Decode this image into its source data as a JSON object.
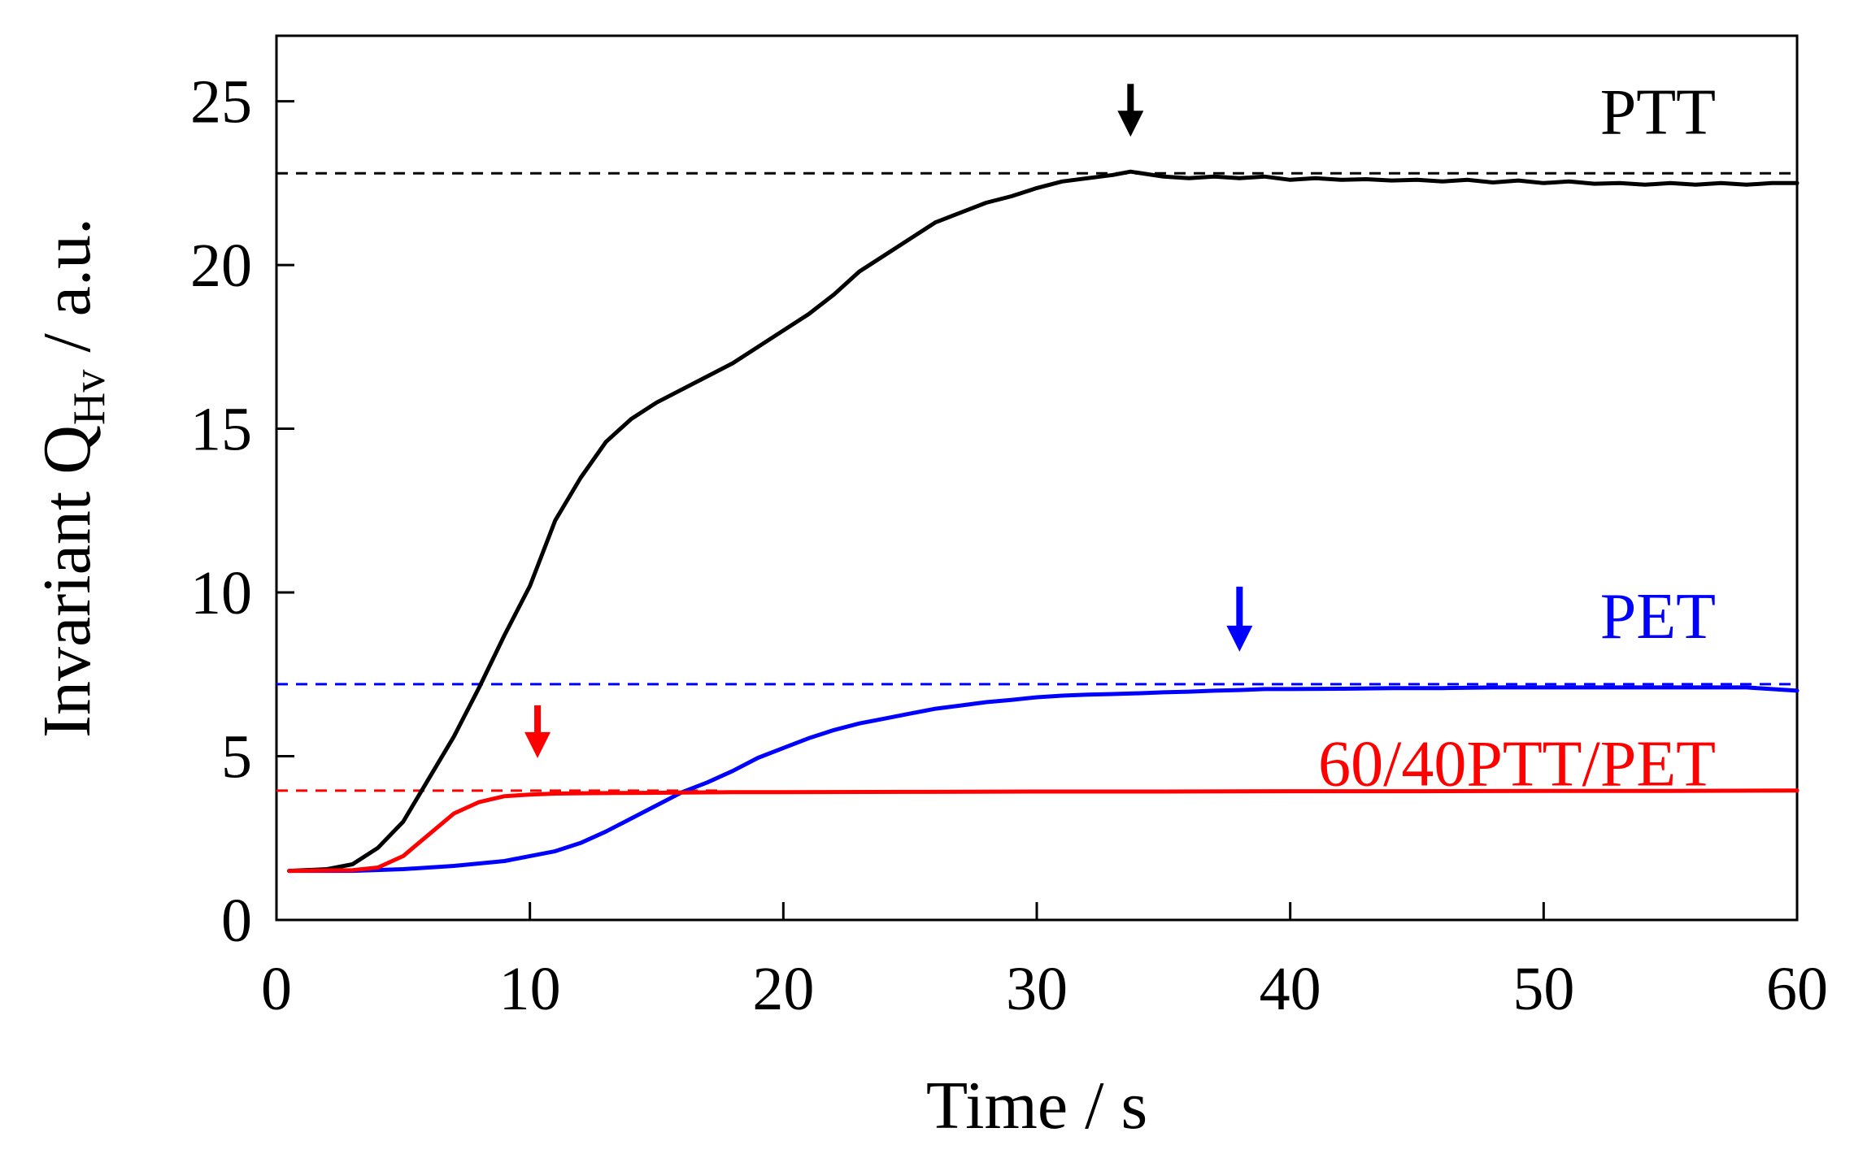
{
  "chart_data": {
    "type": "line",
    "title": "",
    "xlabel": "Time / s",
    "ylabel": {
      "prefix": "Invariant Q",
      "subscript": "Hv",
      "suffix": " / a.u."
    },
    "xlim": [
      0,
      60
    ],
    "ylim": [
      0,
      27
    ],
    "x_ticks": [
      0,
      10,
      20,
      30,
      40,
      50,
      60
    ],
    "y_ticks": [
      0,
      5,
      10,
      15,
      20,
      25
    ],
    "grid": false,
    "series": [
      {
        "name": "PTT",
        "color": "#000000",
        "plateau": 22.8,
        "arrow_x": 33.7,
        "points": [
          [
            0.5,
            1.5
          ],
          [
            2,
            1.55
          ],
          [
            3,
            1.7
          ],
          [
            4,
            2.2
          ],
          [
            5,
            3.0
          ],
          [
            6,
            4.3
          ],
          [
            7,
            5.6
          ],
          [
            8,
            7.1
          ],
          [
            9,
            8.7
          ],
          [
            10,
            10.2
          ],
          [
            11,
            12.2
          ],
          [
            12,
            13.5
          ],
          [
            13,
            14.6
          ],
          [
            14,
            15.3
          ],
          [
            15,
            15.8
          ],
          [
            16,
            16.2
          ],
          [
            17,
            16.6
          ],
          [
            18,
            17.0
          ],
          [
            19,
            17.5
          ],
          [
            20,
            18.0
          ],
          [
            21,
            18.5
          ],
          [
            22,
            19.1
          ],
          [
            23,
            19.8
          ],
          [
            24,
            20.3
          ],
          [
            25,
            20.8
          ],
          [
            26,
            21.3
          ],
          [
            27,
            21.6
          ],
          [
            28,
            21.9
          ],
          [
            29,
            22.1
          ],
          [
            30,
            22.35
          ],
          [
            31,
            22.55
          ],
          [
            32,
            22.65
          ],
          [
            33,
            22.75
          ],
          [
            33.7,
            22.85
          ],
          [
            35,
            22.7
          ],
          [
            36,
            22.65
          ],
          [
            37,
            22.7
          ],
          [
            38,
            22.65
          ],
          [
            39,
            22.7
          ],
          [
            40,
            22.6
          ],
          [
            41,
            22.65
          ],
          [
            42,
            22.6
          ],
          [
            43,
            22.62
          ],
          [
            44,
            22.58
          ],
          [
            45,
            22.6
          ],
          [
            46,
            22.55
          ],
          [
            47,
            22.6
          ],
          [
            48,
            22.52
          ],
          [
            49,
            22.58
          ],
          [
            50,
            22.5
          ],
          [
            51,
            22.55
          ],
          [
            52,
            22.48
          ],
          [
            53,
            22.5
          ],
          [
            54,
            22.45
          ],
          [
            55,
            22.5
          ],
          [
            56,
            22.45
          ],
          [
            57,
            22.5
          ],
          [
            58,
            22.45
          ],
          [
            59,
            22.5
          ],
          [
            60,
            22.5
          ]
        ]
      },
      {
        "name": "PET",
        "color": "#0000ff",
        "plateau": 7.2,
        "arrow_x": 38.0,
        "points": [
          [
            0.5,
            1.5
          ],
          [
            3,
            1.5
          ],
          [
            5,
            1.55
          ],
          [
            7,
            1.65
          ],
          [
            9,
            1.8
          ],
          [
            10,
            1.95
          ],
          [
            11,
            2.1
          ],
          [
            12,
            2.35
          ],
          [
            13,
            2.7
          ],
          [
            14,
            3.1
          ],
          [
            15,
            3.5
          ],
          [
            16,
            3.9
          ],
          [
            17,
            4.2
          ],
          [
            18,
            4.55
          ],
          [
            19,
            4.95
          ],
          [
            20,
            5.25
          ],
          [
            21,
            5.55
          ],
          [
            22,
            5.8
          ],
          [
            23,
            6.0
          ],
          [
            24,
            6.15
          ],
          [
            25,
            6.3
          ],
          [
            26,
            6.45
          ],
          [
            27,
            6.55
          ],
          [
            28,
            6.65
          ],
          [
            29,
            6.72
          ],
          [
            30,
            6.8
          ],
          [
            31,
            6.85
          ],
          [
            32,
            6.88
          ],
          [
            33,
            6.9
          ],
          [
            34,
            6.92
          ],
          [
            35,
            6.95
          ],
          [
            36,
            6.97
          ],
          [
            37,
            7.0
          ],
          [
            38,
            7.02
          ],
          [
            39,
            7.05
          ],
          [
            40,
            7.05
          ],
          [
            42,
            7.06
          ],
          [
            44,
            7.08
          ],
          [
            46,
            7.08
          ],
          [
            48,
            7.1
          ],
          [
            50,
            7.1
          ],
          [
            52,
            7.1
          ],
          [
            54,
            7.1
          ],
          [
            56,
            7.1
          ],
          [
            58,
            7.1
          ],
          [
            60,
            7.0
          ]
        ]
      },
      {
        "name": "60/40PTT/PET",
        "color": "#ff0000",
        "plateau": 3.95,
        "arrow_x": 10.3,
        "points": [
          [
            0.5,
            1.5
          ],
          [
            3,
            1.52
          ],
          [
            4,
            1.6
          ],
          [
            5,
            1.95
          ],
          [
            6,
            2.6
          ],
          [
            7,
            3.25
          ],
          [
            8,
            3.6
          ],
          [
            9,
            3.78
          ],
          [
            10,
            3.83
          ],
          [
            11,
            3.86
          ],
          [
            12,
            3.87
          ],
          [
            14,
            3.88
          ],
          [
            16,
            3.89
          ],
          [
            18,
            3.9
          ],
          [
            20,
            3.9
          ],
          [
            25,
            3.91
          ],
          [
            30,
            3.92
          ],
          [
            35,
            3.92
          ],
          [
            40,
            3.93
          ],
          [
            45,
            3.93
          ],
          [
            50,
            3.94
          ],
          [
            55,
            3.94
          ],
          [
            60,
            3.95
          ]
        ]
      }
    ]
  }
}
